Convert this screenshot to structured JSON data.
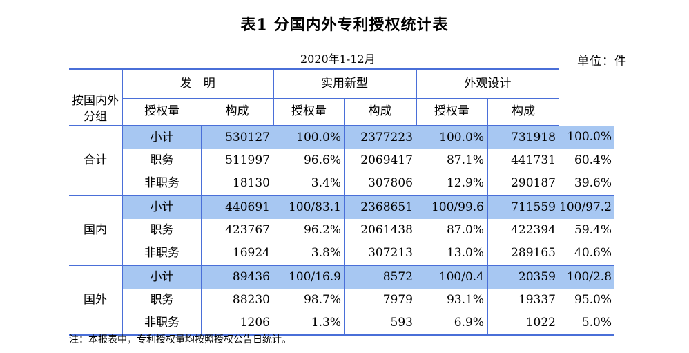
{
  "title": "表1  分国内外专利授权统计表",
  "period": "2020年1-12月",
  "unit": "单位：件",
  "header": {
    "group_col": "按国内外\n分组",
    "categories": [
      "发　明",
      "实用新型",
      "外观设计"
    ],
    "sub_headers": [
      "授权量",
      "构成"
    ]
  },
  "groups": [
    {
      "name": "合计",
      "rows": [
        {
          "label": "小计",
          "values": [
            "530127",
            "100.0%",
            "2377223",
            "100.0%",
            "731918",
            "100.0%"
          ]
        },
        {
          "label": "职务",
          "values": [
            "511997",
            "96.6%",
            "2069417",
            "87.1%",
            "441731",
            "60.4%"
          ]
        },
        {
          "label": "非职务",
          "values": [
            "18130",
            "3.4%",
            "307806",
            "12.9%",
            "290187",
            "39.6%"
          ]
        }
      ]
    },
    {
      "name": "国内",
      "rows": [
        {
          "label": "小计",
          "values": [
            "440691",
            "100/83.1",
            "2368651",
            "100/99.6",
            "711559",
            "100/97.2"
          ]
        },
        {
          "label": "职务",
          "values": [
            "423767",
            "96.2%",
            "2061438",
            "87.0%",
            "422394",
            "59.4%"
          ]
        },
        {
          "label": "非职务",
          "values": [
            "16924",
            "3.8%",
            "307213",
            "13.0%",
            "289165",
            "40.6%"
          ]
        }
      ]
    },
    {
      "name": "国外",
      "rows": [
        {
          "label": "小计",
          "values": [
            "89436",
            "100/16.9",
            "8572",
            "100/0.4",
            "20359",
            "100/2.8"
          ]
        },
        {
          "label": "职务",
          "values": [
            "88230",
            "98.7%",
            "7979",
            "93.1%",
            "19337",
            "95.0%"
          ]
        },
        {
          "label": "非职务",
          "values": [
            "1206",
            "1.3%",
            "593",
            "6.9%",
            "1022",
            "5.0%"
          ]
        }
      ]
    }
  ],
  "note": "注：本报表中，专利授权量均按照授权公告日统计。",
  "colors": {
    "border": "#4a6fd8",
    "highlight": "#a7c7f2"
  }
}
